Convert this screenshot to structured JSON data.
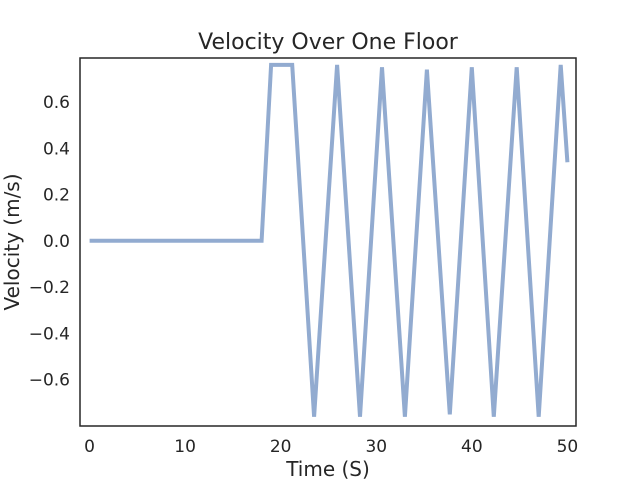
{
  "chart_data": {
    "type": "line",
    "title": "Velocity Over One Floor",
    "xlabel": "Time (S)",
    "ylabel": "Velocity (m/s)",
    "xlim": [
      -1,
      50.9
    ],
    "ylim": [
      -0.8,
      0.79
    ],
    "x_ticks": [
      0,
      10,
      20,
      30,
      40,
      50
    ],
    "x_tick_labels": [
      "0",
      "10",
      "20",
      "30",
      "40",
      "50"
    ],
    "y_ticks": [
      0.6,
      0.4,
      0.2,
      0.0,
      -0.2,
      -0.4,
      -0.6
    ],
    "y_tick_labels": [
      "0.6",
      "0.4",
      "0.2",
      "0.0",
      "−0.2",
      "−0.4",
      "−0.6"
    ],
    "grid": false,
    "line_color": "#92abd0",
    "series": [
      {
        "x": [
          0,
          18.0,
          19.0,
          21.2,
          23.5,
          25.9,
          28.3,
          30.6,
          33.0,
          35.3,
          37.7,
          40.0,
          42.3,
          44.7,
          47.0,
          49.3,
          50.0
        ],
        "y": [
          0,
          0,
          0.76,
          0.76,
          -0.76,
          0.76,
          -0.76,
          0.75,
          -0.76,
          0.74,
          -0.75,
          0.75,
          -0.76,
          0.75,
          -0.76,
          0.76,
          0.34
        ]
      }
    ]
  }
}
